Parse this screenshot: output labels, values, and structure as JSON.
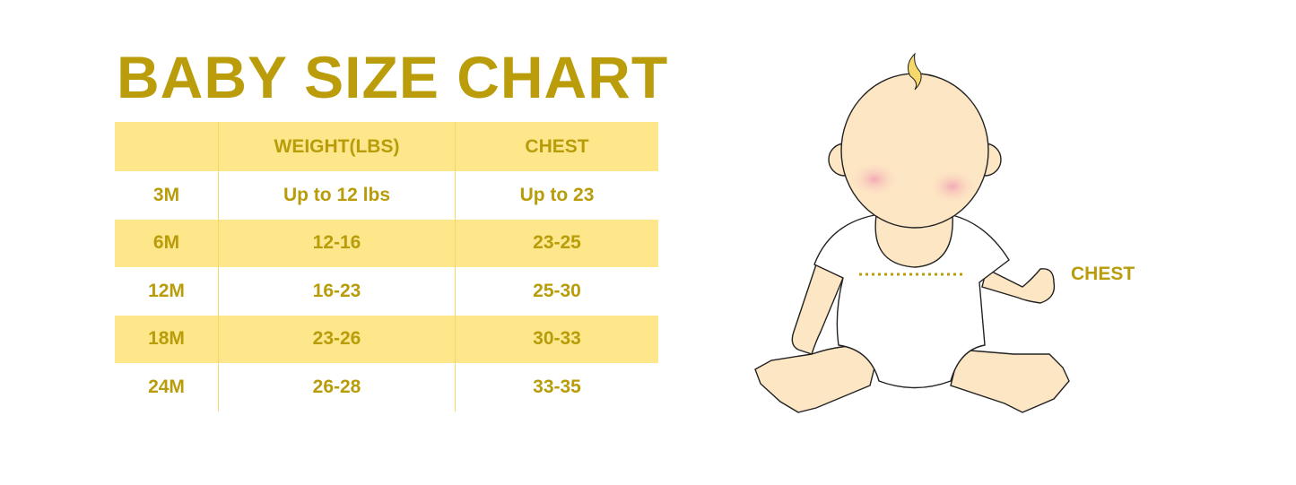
{
  "title": "BABY SIZE CHART",
  "table": {
    "headers": [
      "",
      "WEIGHT(LBS)",
      "CHEST"
    ],
    "rows": [
      [
        "3M",
        "Up to 12 lbs",
        "Up to 23"
      ],
      [
        "6M",
        "12-16",
        "23-25"
      ],
      [
        "12M",
        "16-23",
        "25-30"
      ],
      [
        "18M",
        "23-26",
        "30-33"
      ],
      [
        "24M",
        "26-28",
        "33-35"
      ]
    ]
  },
  "illustration": {
    "chest_label": "CHEST"
  },
  "colors": {
    "text": "#b89c0a",
    "band": "#fde78a",
    "skin": "#fde6c4"
  }
}
